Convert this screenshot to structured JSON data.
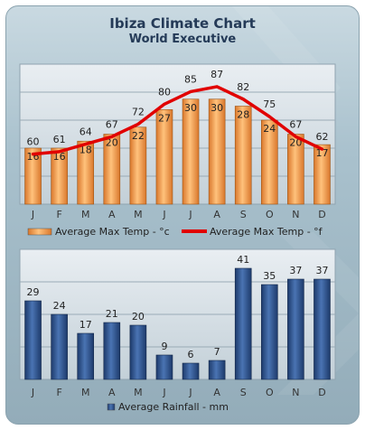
{
  "title": "Ibiza Climate Chart",
  "subtitle": "World Executive",
  "chart_data": [
    {
      "type": "bar",
      "categories": [
        "J",
        "F",
        "M",
        "A",
        "M",
        "J",
        "J",
        "A",
        "S",
        "O",
        "N",
        "D"
      ],
      "series": [
        {
          "name": "Average Max Temp - °c",
          "type": "bar",
          "color": "#f2a24c",
          "values": [
            16,
            16,
            18,
            20,
            22,
            27,
            30,
            30,
            28,
            24,
            20,
            17
          ]
        },
        {
          "name": "Average Max Temp - °f",
          "type": "line",
          "color": "#e10000",
          "values": [
            60,
            61,
            64,
            67,
            72,
            80,
            85,
            87,
            82,
            75,
            67,
            62
          ]
        }
      ],
      "grid": true,
      "legend": "bottom"
    },
    {
      "type": "bar",
      "categories": [
        "J",
        "F",
        "M",
        "A",
        "M",
        "J",
        "J",
        "A",
        "S",
        "O",
        "N",
        "D"
      ],
      "series": [
        {
          "name": "Average Rainfall - mm",
          "type": "bar",
          "color": "#2d5089",
          "values": [
            29,
            24,
            17,
            21,
            20,
            9,
            6,
            7,
            41,
            35,
            37,
            37
          ]
        }
      ],
      "grid": true,
      "legend": "bottom"
    }
  ]
}
